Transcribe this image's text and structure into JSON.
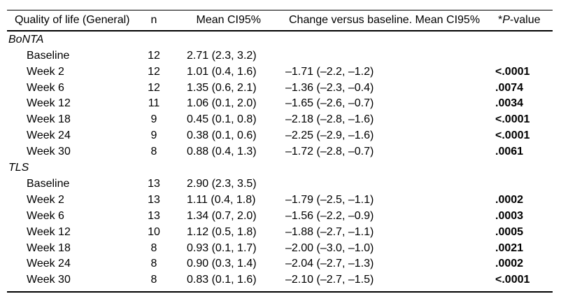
{
  "table": {
    "header": {
      "label": "Quality of life (General)",
      "n": "n",
      "mean": "Mean CI95%",
      "change": "Change versus baseline. Mean CI95%",
      "pvalue_star": "*",
      "pvalue_p": "P",
      "pvalue_suffix": "-value"
    },
    "rows": [
      {
        "type": "group",
        "label": "BoNTA",
        "n": "",
        "mean": "",
        "change": "",
        "p": ""
      },
      {
        "type": "item",
        "label": "Baseline",
        "n": "12",
        "mean": "2.71 (2.3, 3.2)",
        "change": "",
        "p": ""
      },
      {
        "type": "item",
        "label": "Week 2",
        "n": "12",
        "mean": "1.01 (0.4, 1.6)",
        "change": "–1.71 (–2.2, –1.2)",
        "p": "<.0001"
      },
      {
        "type": "item",
        "label": "Week 6",
        "n": "12",
        "mean": "1.35 (0.6, 2.1)",
        "change": "–1.36 (–2.3, –0.4)",
        "p": ".0074"
      },
      {
        "type": "item",
        "label": "Week 12",
        "n": "11",
        "mean": "1.06 (0.1, 2.0)",
        "change": "–1.65 (–2.6, –0.7)",
        "p": ".0034"
      },
      {
        "type": "item",
        "label": "Week 18",
        "n": "9",
        "mean": "0.45 (0.1, 0.8)",
        "change": "–2.18 (–2.8, –1.6)",
        "p": "<.0001"
      },
      {
        "type": "item",
        "label": "Week 24",
        "n": "9",
        "mean": "0.38 (0.1, 0.6)",
        "change": "–2.25 (–2.9, –1.6)",
        "p": "<.0001"
      },
      {
        "type": "item",
        "label": "Week 30",
        "n": "8",
        "mean": "0.88 (0.4, 1.3)",
        "change": "–1.72 (–2.8, –0.7)",
        "p": ".0061"
      },
      {
        "type": "group",
        "label": "TLS",
        "n": "",
        "mean": "",
        "change": "",
        "p": ""
      },
      {
        "type": "item",
        "label": "Baseline",
        "n": "13",
        "mean": "2.90 (2.3, 3.5)",
        "change": "",
        "p": ""
      },
      {
        "type": "item",
        "label": "Week 2",
        "n": "13",
        "mean": "1.11 (0.4, 1.8)",
        "change": "–1.79 (–2.5, –1.1)",
        "p": ".0002"
      },
      {
        "type": "item",
        "label": "Week 6",
        "n": "13",
        "mean": "1.34 (0.7, 2.0)",
        "change": "–1.56 (–2.2, –0.9)",
        "p": ".0003"
      },
      {
        "type": "item",
        "label": "Week 12",
        "n": "10",
        "mean": "1.12 (0.5, 1.8)",
        "change": "–1.88 (–2.7, –1.1)",
        "p": ".0005"
      },
      {
        "type": "item",
        "label": "Week 18",
        "n": "8",
        "mean": "0.93 (0.1, 1.7)",
        "change": "–2.00 (–3.0, –1.0)",
        "p": ".0021"
      },
      {
        "type": "item",
        "label": "Week 24",
        "n": "8",
        "mean": "0.90 (0.3, 1.4)",
        "change": "–2.04 (–2.7, –1.3)",
        "p": ".0002"
      },
      {
        "type": "item",
        "label": "Week 30",
        "n": "8",
        "mean": "0.83 (0.1, 1.6)",
        "change": "–2.10 (–2.7, –1.5)",
        "p": "<.0001"
      }
    ]
  }
}
